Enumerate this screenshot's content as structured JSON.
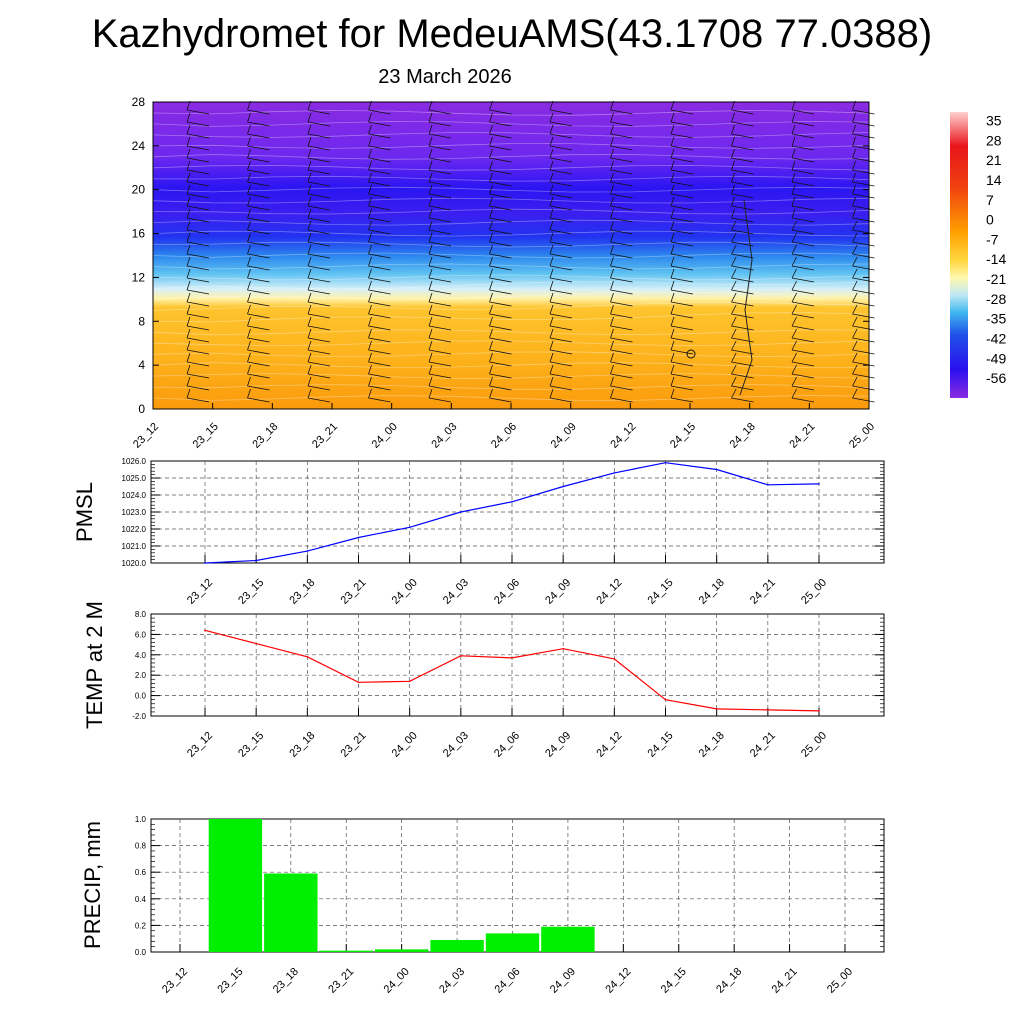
{
  "title": "Kazhydromet for MedeuAMS(43.1708 77.0388)",
  "subtitle": "23 March 2026",
  "time_labels": [
    "23_12",
    "23_15",
    "23_18",
    "23_21",
    "24_00",
    "24_03",
    "24_06",
    "24_09",
    "24_12",
    "24_15",
    "24_18",
    "24_21",
    "25_00"
  ],
  "colors": {
    "pmsl_line": "#0000ff",
    "temp_line": "#ff0000",
    "precip_bar": "#00ee00"
  },
  "chart_data": [
    {
      "type": "heatmap",
      "name": "vertical-profile",
      "x_ticks": [
        "23_12",
        "23_15",
        "23_18",
        "23_21",
        "24_00",
        "24_03",
        "24_06",
        "24_09",
        "24_12",
        "24_15",
        "24_18",
        "24_21",
        "25_00"
      ],
      "y_ticks": [
        0,
        4,
        8,
        12,
        16,
        20,
        24,
        28
      ],
      "ylim": [
        0,
        28
      ],
      "colorbar_labels": [
        "35",
        "28",
        "21",
        "14",
        "7",
        "0",
        "-7",
        "-14",
        "-21",
        "-28",
        "-35",
        "-42",
        "-49",
        "-56"
      ],
      "colorbar_range": [
        -63,
        38
      ],
      "temperature_profile": [
        {
          "level": 0,
          "value": 7
        },
        {
          "level": 2,
          "value": 3
        },
        {
          "level": 4,
          "value": 1
        },
        {
          "level": 6,
          "value": -2
        },
        {
          "level": 8,
          "value": -4
        },
        {
          "level": 9.5,
          "value": -8
        },
        {
          "level": 10.5,
          "value": -15
        },
        {
          "level": 12,
          "value": -22
        },
        {
          "level": 13.5,
          "value": -32
        },
        {
          "level": 15,
          "value": -45
        },
        {
          "level": 17,
          "value": -55
        },
        {
          "level": 19,
          "value": -58
        },
        {
          "level": 21,
          "value": -60
        },
        {
          "level": 23,
          "value": -57
        },
        {
          "level": 25,
          "value": -55
        },
        {
          "level": 28,
          "value": -53
        }
      ],
      "wind_barbs": true
    },
    {
      "type": "line",
      "name": "pmsl",
      "ylabel": "PMSL",
      "ylim": [
        1020,
        1026
      ],
      "y_ticks": [
        "1026.0",
        "1025.0",
        "1024.0",
        "1023.0",
        "1022.0",
        "1021.0",
        "1020.0"
      ],
      "categories": [
        "23_12",
        "23_15",
        "23_18",
        "23_21",
        "24_00",
        "24_03",
        "24_06",
        "24_09",
        "24_12",
        "24_15",
        "24_18",
        "24_21",
        "25_00"
      ],
      "values": [
        1020.0,
        1020.15,
        1020.7,
        1021.5,
        1022.1,
        1023.0,
        1023.6,
        1024.5,
        1025.3,
        1025.9,
        1025.5,
        1024.6,
        1024.65
      ]
    },
    {
      "type": "line",
      "name": "temp-2m",
      "ylabel": "TEMP at 2 M",
      "ylim": [
        -2,
        8
      ],
      "y_ticks": [
        "8.0",
        "6.0",
        "4.0",
        "2.0",
        "0.0",
        "-2.0"
      ],
      "categories": [
        "23_12",
        "23_15",
        "23_18",
        "23_21",
        "24_00",
        "24_03",
        "24_06",
        "24_09",
        "24_12",
        "24_15",
        "24_18",
        "24_21",
        "25_00"
      ],
      "values": [
        6.4,
        5.1,
        3.8,
        1.3,
        1.4,
        3.9,
        3.7,
        4.6,
        3.6,
        -0.4,
        -1.3,
        -1.4,
        -1.5
      ]
    },
    {
      "type": "bar",
      "name": "precip",
      "ylabel": "PRECIP, mm",
      "ylim": [
        0,
        1
      ],
      "y_ticks": [
        "1.0",
        "0.8",
        "0.6",
        "0.4",
        "0.2",
        "0.0"
      ],
      "categories": [
        "23_12",
        "23_15",
        "23_18",
        "23_21",
        "24_00",
        "24_03",
        "24_06",
        "24_09",
        "24_12",
        "24_15",
        "24_18",
        "24_21",
        "25_00"
      ],
      "values": [
        0,
        1.0,
        0.59,
        0.01,
        0.02,
        0.09,
        0.14,
        0.19,
        0,
        0,
        0,
        0,
        0
      ]
    }
  ]
}
